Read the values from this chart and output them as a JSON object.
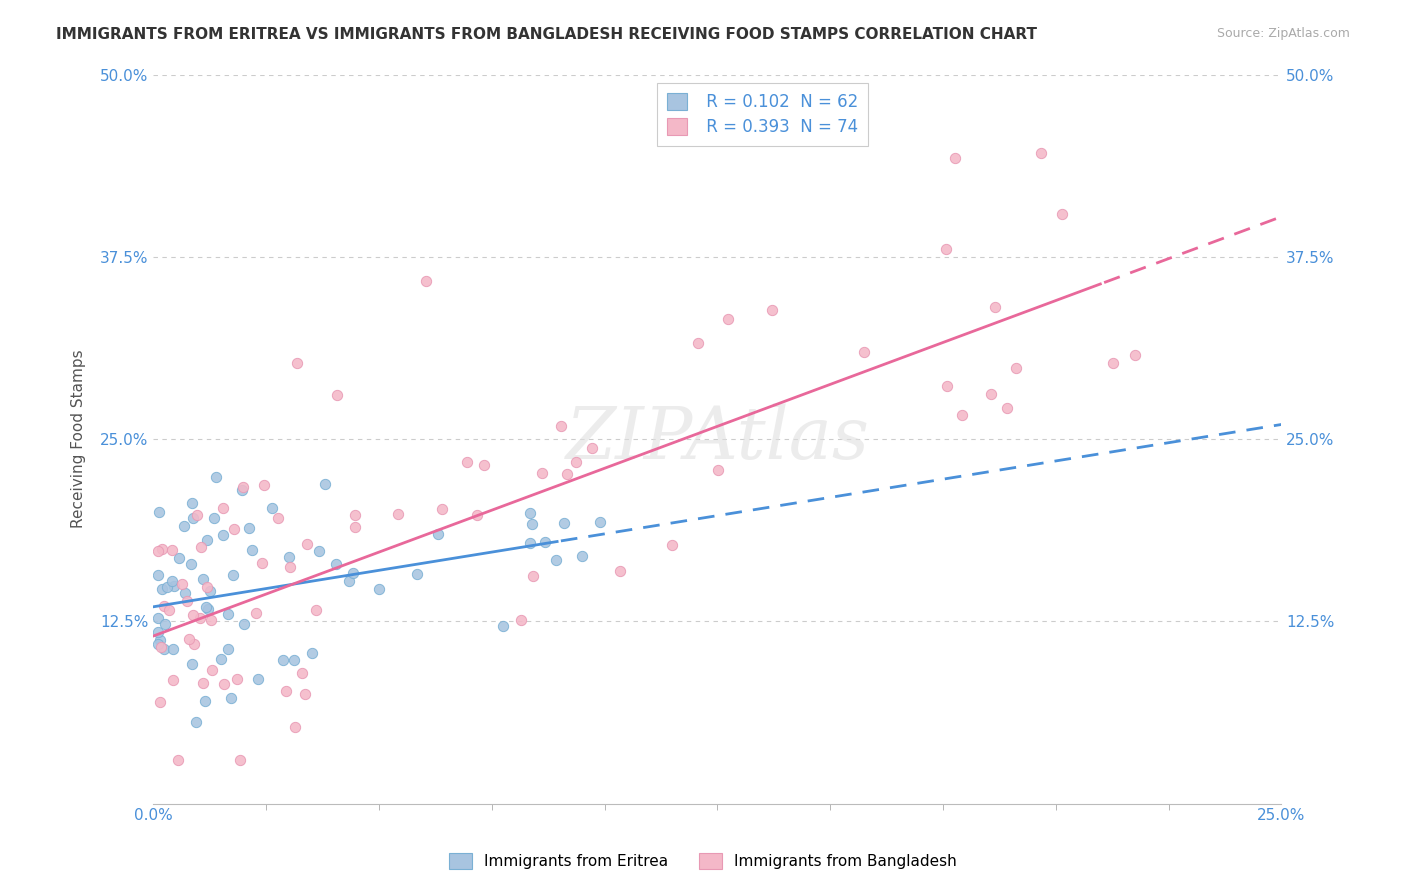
{
  "title": "IMMIGRANTS FROM ERITREA VS IMMIGRANTS FROM BANGLADESH RECEIVING FOOD STAMPS CORRELATION CHART",
  "source": "Source: ZipAtlas.com",
  "ylabel": "Receiving Food Stamps",
  "xlim": [
    0,
    0.25
  ],
  "ylim": [
    0,
    0.5
  ],
  "yticks": [
    0,
    0.125,
    0.25,
    0.375,
    0.5
  ],
  "ytick_labels": [
    "",
    "12.5%",
    "25.0%",
    "37.5%",
    "50.0%"
  ],
  "series": [
    {
      "name": "Immigrants from Eritrea",
      "R": 0.102,
      "N": 62,
      "marker_color": "#a8c4e0",
      "marker_edge_color": "#7ab0d4",
      "line_color": "#4a90d9",
      "trend_solid_end": 0.09,
      "trend_intercept": 0.135,
      "trend_slope": 0.5
    },
    {
      "name": "Immigrants from Bangladesh",
      "R": 0.393,
      "N": 74,
      "marker_color": "#f4b8c8",
      "marker_edge_color": "#e899b4",
      "line_color": "#e8689a",
      "trend_solid_end": 0.21,
      "trend_intercept": 0.115,
      "trend_slope": 1.15
    }
  ],
  "watermark": "ZIPAtlas",
  "background_color": "#ffffff",
  "grid_color": "#cccccc"
}
